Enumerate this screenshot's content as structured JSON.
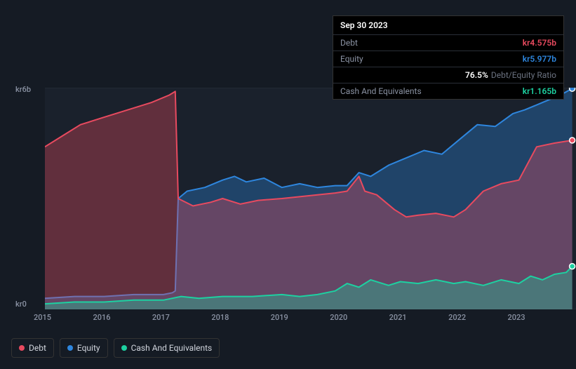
{
  "tooltip": {
    "date": "Sep 30 2023",
    "rows": [
      {
        "label": "Debt",
        "value": "kr4.575b",
        "cls": "debt"
      },
      {
        "label": "Equity",
        "value": "kr5.977b",
        "cls": "equity"
      },
      {
        "label": "",
        "value": "76.5%",
        "suffix": "Debt/Equity Ratio",
        "cls": "ratio"
      },
      {
        "label": "Cash And Equivalents",
        "value": "kr1.165b",
        "cls": "cash"
      }
    ]
  },
  "chart": {
    "type": "area",
    "background_color": "#1a212c",
    "page_background": "#151b24",
    "ylim": [
      0,
      6
    ],
    "y_unit_prefix": "kr",
    "y_unit_suffix": "b",
    "y_ticks": [
      {
        "v": 0,
        "label": "kr0"
      },
      {
        "v": 6,
        "label": "kr6b"
      }
    ],
    "x_ticks": [
      "2015",
      "2016",
      "2017",
      "2018",
      "2019",
      "2020",
      "2021",
      "2022",
      "2023"
    ],
    "x_range": [
      2015,
      2024
    ],
    "series": [
      {
        "name": "Debt",
        "color": "#e84a5f",
        "fill_opacity": 0.35,
        "line_width": 2,
        "points": [
          [
            2015.0,
            4.4
          ],
          [
            2015.3,
            4.7
          ],
          [
            2015.6,
            5.0
          ],
          [
            2016.0,
            5.2
          ],
          [
            2016.4,
            5.4
          ],
          [
            2016.8,
            5.6
          ],
          [
            2017.1,
            5.8
          ],
          [
            2017.2,
            5.9
          ],
          [
            2017.25,
            3.0
          ],
          [
            2017.5,
            2.8
          ],
          [
            2017.8,
            2.9
          ],
          [
            2018.0,
            3.0
          ],
          [
            2018.3,
            2.85
          ],
          [
            2018.6,
            2.95
          ],
          [
            2019.0,
            3.0
          ],
          [
            2019.3,
            3.05
          ],
          [
            2019.6,
            3.1
          ],
          [
            2019.9,
            3.15
          ],
          [
            2020.1,
            3.2
          ],
          [
            2020.3,
            3.6
          ],
          [
            2020.4,
            3.2
          ],
          [
            2020.6,
            3.1
          ],
          [
            2020.9,
            2.7
          ],
          [
            2021.1,
            2.5
          ],
          [
            2021.3,
            2.55
          ],
          [
            2021.6,
            2.6
          ],
          [
            2021.9,
            2.5
          ],
          [
            2022.1,
            2.7
          ],
          [
            2022.4,
            3.2
          ],
          [
            2022.7,
            3.4
          ],
          [
            2023.0,
            3.5
          ],
          [
            2023.3,
            4.4
          ],
          [
            2023.6,
            4.5
          ],
          [
            2023.9,
            4.575
          ]
        ]
      },
      {
        "name": "Equity",
        "color": "#2e86de",
        "fill_opacity": 0.35,
        "line_width": 2,
        "points": [
          [
            2015.0,
            0.3
          ],
          [
            2015.5,
            0.35
          ],
          [
            2016.0,
            0.35
          ],
          [
            2016.5,
            0.4
          ],
          [
            2017.0,
            0.4
          ],
          [
            2017.15,
            0.45
          ],
          [
            2017.2,
            0.5
          ],
          [
            2017.25,
            3.0
          ],
          [
            2017.4,
            3.2
          ],
          [
            2017.7,
            3.3
          ],
          [
            2018.0,
            3.5
          ],
          [
            2018.2,
            3.6
          ],
          [
            2018.4,
            3.45
          ],
          [
            2018.7,
            3.55
          ],
          [
            2019.0,
            3.3
          ],
          [
            2019.3,
            3.4
          ],
          [
            2019.6,
            3.3
          ],
          [
            2019.9,
            3.35
          ],
          [
            2020.1,
            3.35
          ],
          [
            2020.3,
            3.7
          ],
          [
            2020.5,
            3.6
          ],
          [
            2020.8,
            3.9
          ],
          [
            2021.1,
            4.1
          ],
          [
            2021.4,
            4.3
          ],
          [
            2021.7,
            4.2
          ],
          [
            2022.0,
            4.6
          ],
          [
            2022.3,
            5.0
          ],
          [
            2022.6,
            4.95
          ],
          [
            2022.9,
            5.3
          ],
          [
            2023.1,
            5.4
          ],
          [
            2023.4,
            5.6
          ],
          [
            2023.7,
            5.8
          ],
          [
            2023.9,
            5.977
          ]
        ]
      },
      {
        "name": "Cash And Equivalents",
        "color": "#1dd1a1",
        "fill_opacity": 0.35,
        "line_width": 2,
        "points": [
          [
            2015.0,
            0.15
          ],
          [
            2015.5,
            0.2
          ],
          [
            2016.0,
            0.2
          ],
          [
            2016.5,
            0.25
          ],
          [
            2017.0,
            0.25
          ],
          [
            2017.3,
            0.35
          ],
          [
            2017.6,
            0.3
          ],
          [
            2018.0,
            0.35
          ],
          [
            2018.5,
            0.35
          ],
          [
            2019.0,
            0.4
          ],
          [
            2019.3,
            0.35
          ],
          [
            2019.6,
            0.4
          ],
          [
            2019.9,
            0.5
          ],
          [
            2020.1,
            0.7
          ],
          [
            2020.3,
            0.6
          ],
          [
            2020.5,
            0.8
          ],
          [
            2020.8,
            0.65
          ],
          [
            2021.0,
            0.75
          ],
          [
            2021.3,
            0.7
          ],
          [
            2021.6,
            0.8
          ],
          [
            2021.9,
            0.7
          ],
          [
            2022.1,
            0.75
          ],
          [
            2022.4,
            0.65
          ],
          [
            2022.7,
            0.8
          ],
          [
            2023.0,
            0.7
          ],
          [
            2023.2,
            0.9
          ],
          [
            2023.4,
            0.8
          ],
          [
            2023.6,
            0.95
          ],
          [
            2023.8,
            1.0
          ],
          [
            2023.9,
            1.165
          ]
        ]
      }
    ],
    "end_markers": true,
    "label_fontsize": 11,
    "label_color": "#8a92a3"
  },
  "legend": {
    "items": [
      {
        "label": "Debt",
        "color": "#e84a5f"
      },
      {
        "label": "Equity",
        "color": "#2e86de"
      },
      {
        "label": "Cash And Equivalents",
        "color": "#1dd1a1"
      }
    ]
  }
}
